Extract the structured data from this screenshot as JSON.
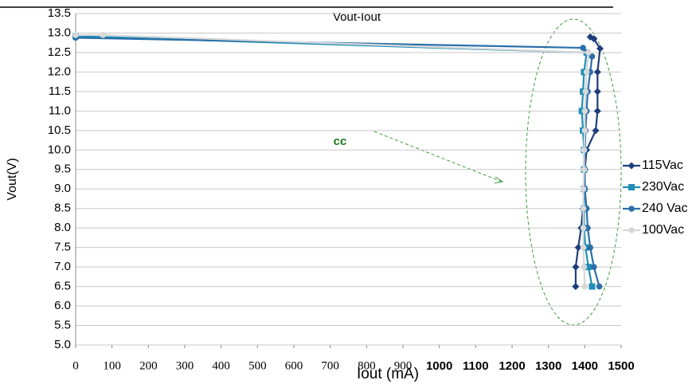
{
  "chart_data": {
    "type": "line",
    "title": "Vout-Iout",
    "x_label": "Iout (mA)",
    "y_label": "Vout(V)",
    "annotation": "cc",
    "xlim": [
      0,
      1500
    ],
    "xticks": [
      0,
      100,
      200,
      300,
      400,
      500,
      600,
      700,
      800,
      900,
      1000,
      1100,
      1200,
      1300,
      1400,
      1500
    ],
    "ylim": [
      5,
      13.5
    ],
    "yticks": [
      {
        "value": 5,
        "label": "5.0"
      },
      5.5,
      {
        "value": 6,
        "label": "6.0"
      },
      6.5,
      {
        "value": 7,
        "label": "7.0"
      },
      7.5,
      {
        "value": 8,
        "label": "8.0"
      },
      8.5,
      {
        "value": 9,
        "label": "9.0"
      },
      9.5,
      {
        "value": 10,
        "label": "10.0"
      },
      10.5,
      {
        "value": 11,
        "label": "11.0"
      },
      11.5,
      {
        "value": 12,
        "label": "12.0"
      },
      12.5,
      {
        "value": 13,
        "label": "13.0"
      },
      13.5
    ],
    "grid": true,
    "legend": "right",
    "series": [
      {
        "name": "115Vac",
        "color": "#1f3d7a",
        "marker": "diamond",
        "x": [
          1375,
          1375,
          1382,
          1390,
          1395,
          1400,
          1400,
          1405,
          1430,
          1435,
          1435,
          1435,
          1442,
          1425,
          1415
        ],
        "values": [
          6.5,
          7,
          7.5,
          8,
          8.5,
          9,
          9.5,
          10,
          10.5,
          11,
          11.5,
          12,
          12.6,
          12.85,
          12.9
        ]
      },
      {
        "name": "230Vac",
        "color": "#1f8fb8",
        "marker": "square",
        "x": [
          1420,
          1410,
          1402,
          1398,
          1398,
          1398,
          1398,
          1398,
          1395,
          1392,
          1395,
          1398,
          1405,
          0
        ],
        "values": [
          6.5,
          7,
          7.5,
          8,
          8.5,
          9,
          9.5,
          10,
          10.5,
          11,
          11.5,
          12,
          12.5,
          12.92
        ]
      },
      {
        "name": "240 Vac",
        "color": "#2a6fa8",
        "marker": "circle",
        "x": [
          1440,
          1425,
          1415,
          1408,
          1405,
          1400,
          1400,
          1400,
          1402,
          1405,
          1408,
          1415,
          1420,
          1395,
          0
        ],
        "values": [
          6.5,
          7,
          7.5,
          8,
          8.5,
          9,
          9.5,
          10,
          10.5,
          11,
          11.5,
          12,
          12.4,
          12.62,
          12.88
        ]
      },
      {
        "name": "100Vac",
        "color": "#d8d8d8",
        "marker": "circle",
        "x": [
          1400,
          1398,
          1396,
          1396,
          1396,
          1396,
          1398,
          1398,
          1400,
          1400,
          1402,
          1405,
          1410,
          75,
          0
        ],
        "values": [
          6.5,
          7,
          7.5,
          8,
          8.5,
          9,
          9.5,
          10,
          10.5,
          11,
          11.5,
          12,
          12.5,
          12.95,
          12.95
        ]
      }
    ]
  }
}
